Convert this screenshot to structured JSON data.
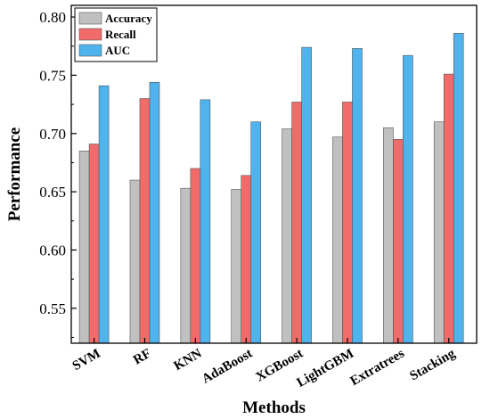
{
  "chart_data": {
    "type": "bar",
    "title": "",
    "xlabel": "Methods",
    "ylabel": "Performance",
    "categories": [
      "SVM",
      "RF",
      "KNN",
      "AdaBoost",
      "XGBoost",
      "LightGBM",
      "Extratrees",
      "Stacking"
    ],
    "ylim": [
      0.52,
      0.81
    ],
    "yticks": [
      "0.55",
      "0.60",
      "0.65",
      "0.70",
      "0.75",
      "0.80"
    ],
    "legend_position": "top-left",
    "grid": false,
    "series": [
      {
        "name": "Accuracy",
        "color": "#c0c0c0",
        "values": [
          0.685,
          0.66,
          0.653,
          0.652,
          0.704,
          0.697,
          0.705,
          0.71
        ]
      },
      {
        "name": "Recall",
        "color": "#f26b6b",
        "values": [
          0.691,
          0.73,
          0.67,
          0.664,
          0.727,
          0.727,
          0.695,
          0.751
        ]
      },
      {
        "name": "AUC",
        "color": "#4fb3ee",
        "values": [
          0.741,
          0.744,
          0.729,
          0.71,
          0.774,
          0.773,
          0.767,
          0.786
        ]
      }
    ]
  }
}
